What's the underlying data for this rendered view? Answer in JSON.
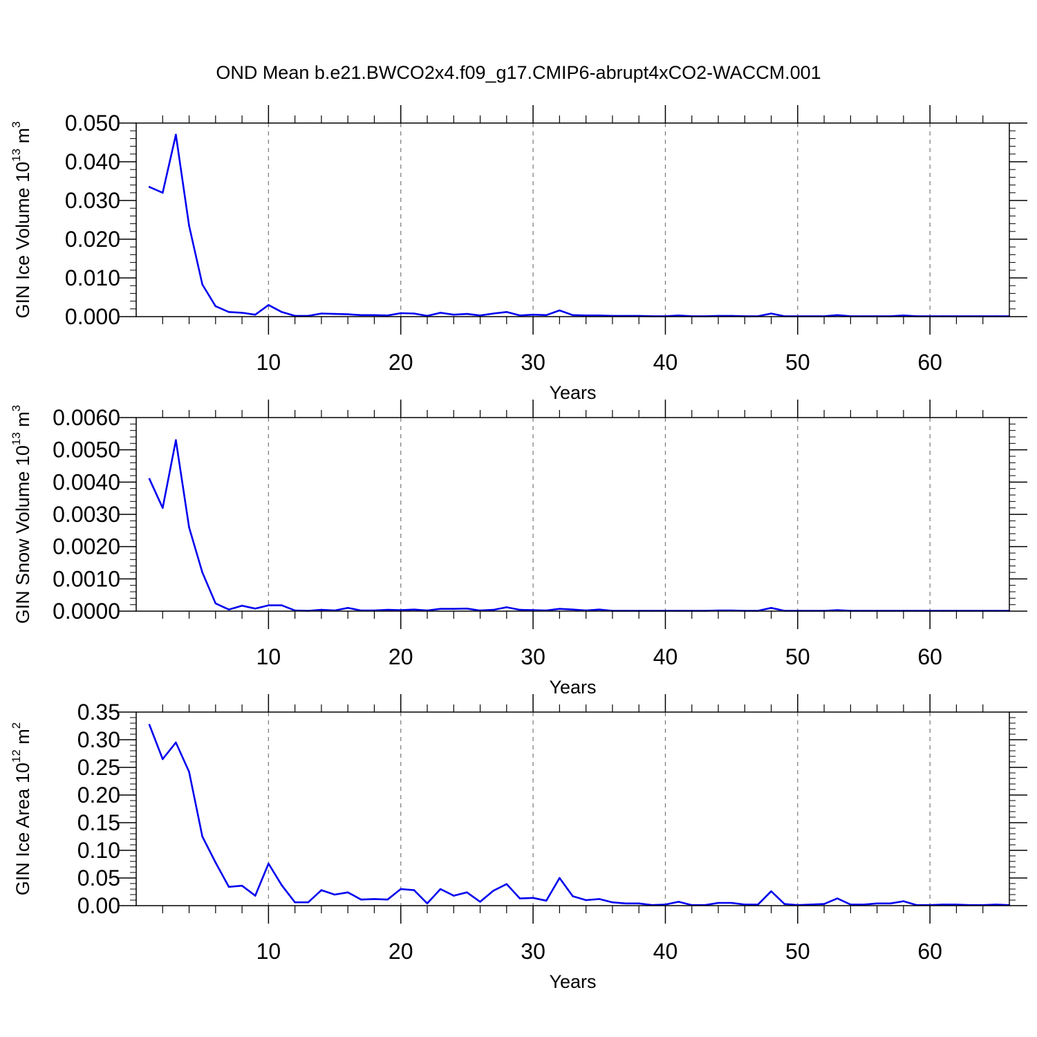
{
  "title": "OND Mean b.e21.BWCO2x4.f09_g17.CMIP6-abrupt4xCO2-WACCM.001",
  "chart_data": [
    {
      "type": "line",
      "ylabel": "GIN Ice Volume 10",
      "ylabel_exp": "13",
      "ylabel_unit": " m",
      "ylabel_unit_exp": "3",
      "xlabel": "Years",
      "xlim": [
        0,
        66
      ],
      "ylim": [
        0,
        0.05
      ],
      "x_ticks": [
        10,
        20,
        30,
        40,
        50,
        60
      ],
      "y_ticks": [
        0,
        0.01,
        0.02,
        0.03,
        0.04,
        0.05
      ],
      "y_tick_labels": [
        "0.000",
        "0.010",
        "0.020",
        "0.030",
        "0.040",
        "0.050"
      ],
      "y_minor_step": 0.002,
      "grid": "x-dashed",
      "line_color": "#0000ee",
      "x": [
        1,
        2,
        3,
        4,
        5,
        6,
        7,
        8,
        9,
        10,
        11,
        12,
        13,
        14,
        15,
        16,
        17,
        18,
        19,
        20,
        21,
        22,
        23,
        24,
        25,
        26,
        27,
        28,
        29,
        30,
        31,
        32,
        33,
        34,
        35,
        36,
        37,
        38,
        39,
        40,
        41,
        42,
        43,
        44,
        45,
        46,
        47,
        48,
        49,
        50,
        51,
        52,
        53,
        54,
        55,
        56,
        57,
        58,
        59,
        60,
        61,
        62,
        63,
        64,
        65,
        66
      ],
      "values": [
        0.0335,
        0.032,
        0.047,
        0.0235,
        0.0083,
        0.0027,
        0.0012,
        0.001,
        0.0005,
        0.003,
        0.0012,
        0.0002,
        0.0002,
        0.0008,
        0.0007,
        0.0006,
        0.0004,
        0.0004,
        0.0003,
        0.0009,
        0.0008,
        0.0002,
        0.001,
        0.0005,
        0.0007,
        0.0003,
        0.0008,
        0.0012,
        0.0003,
        0.0005,
        0.0004,
        0.0016,
        0.0004,
        0.0003,
        0.0003,
        0.0002,
        0.0002,
        0.0002,
        0.0001,
        0.0001,
        0.0003,
        0.0001,
        0.0001,
        0.0002,
        0.0002,
        0.0001,
        0.0001,
        0.0008,
        0.0001,
        0.0001,
        0.0001,
        0.0001,
        0.0004,
        0.0001,
        0.0001,
        0.0001,
        0.0001,
        0.0003,
        0.0001,
        0.0001,
        0.0001,
        0.0001,
        0.0001,
        0.0001,
        0.0001,
        0.0001
      ]
    },
    {
      "type": "line",
      "ylabel": "GIN Snow Volume 10",
      "ylabel_exp": "13",
      "ylabel_unit": " m",
      "ylabel_unit_exp": "3",
      "xlabel": "Years",
      "xlim": [
        0,
        66
      ],
      "ylim": [
        0,
        0.006
      ],
      "x_ticks": [
        10,
        20,
        30,
        40,
        50,
        60
      ],
      "y_ticks": [
        0,
        0.001,
        0.002,
        0.003,
        0.004,
        0.005,
        0.006
      ],
      "y_tick_labels": [
        "0.0000",
        "0.0010",
        "0.0020",
        "0.0030",
        "0.0040",
        "0.0050",
        "0.0060"
      ],
      "y_minor_step": 0.0002,
      "grid": "x-dashed",
      "line_color": "#0000ee",
      "x": [
        1,
        2,
        3,
        4,
        5,
        6,
        7,
        8,
        9,
        10,
        11,
        12,
        13,
        14,
        15,
        16,
        17,
        18,
        19,
        20,
        21,
        22,
        23,
        24,
        25,
        26,
        27,
        28,
        29,
        30,
        31,
        32,
        33,
        34,
        35,
        36,
        37,
        38,
        39,
        40,
        41,
        42,
        43,
        44,
        45,
        46,
        47,
        48,
        49,
        50,
        51,
        52,
        53,
        54,
        55,
        56,
        57,
        58,
        59,
        60,
        61,
        62,
        63,
        64,
        65,
        66
      ],
      "values": [
        0.0041,
        0.0032,
        0.0053,
        0.0026,
        0.0012,
        0.00024,
        5e-05,
        0.00017,
        8e-05,
        0.00018,
        0.00018,
        2e-05,
        1e-05,
        4e-05,
        2e-05,
        0.0001,
        2e-05,
        2e-05,
        4e-05,
        3e-05,
        5e-05,
        2e-05,
        7e-05,
        7e-05,
        8e-05,
        2e-05,
        4e-05,
        0.00012,
        4e-05,
        3e-05,
        2e-05,
        7e-05,
        5e-05,
        2e-05,
        5e-05,
        1e-05,
        1e-05,
        1e-05,
        1e-05,
        1e-05,
        1e-05,
        1e-05,
        1e-05,
        2e-05,
        2e-05,
        1e-05,
        1e-05,
        0.0001,
        1e-05,
        1e-05,
        1e-05,
        1e-05,
        3e-05,
        1e-05,
        1e-05,
        1e-05,
        1e-05,
        1e-05,
        1e-05,
        1e-05,
        1e-05,
        1e-05,
        1e-05,
        1e-05,
        1e-05,
        1e-05
      ]
    },
    {
      "type": "line",
      "ylabel": "GIN Ice Area 10",
      "ylabel_exp": "12",
      "ylabel_unit": " m",
      "ylabel_unit_exp": "2",
      "xlabel": "Years",
      "xlim": [
        0,
        66
      ],
      "ylim": [
        0,
        0.35
      ],
      "x_ticks": [
        10,
        20,
        30,
        40,
        50,
        60
      ],
      "y_ticks": [
        0,
        0.05,
        0.1,
        0.15,
        0.2,
        0.25,
        0.3,
        0.35
      ],
      "y_tick_labels": [
        "0.00",
        "0.05",
        "0.10",
        "0.15",
        "0.20",
        "0.25",
        "0.30",
        "0.35"
      ],
      "y_minor_step": 0.01,
      "grid": "x-dashed",
      "line_color": "#0000ee",
      "x": [
        1,
        2,
        3,
        4,
        5,
        6,
        7,
        8,
        9,
        10,
        11,
        12,
        13,
        14,
        15,
        16,
        17,
        18,
        19,
        20,
        21,
        22,
        23,
        24,
        25,
        26,
        27,
        28,
        29,
        30,
        31,
        32,
        33,
        34,
        35,
        36,
        37,
        38,
        39,
        40,
        41,
        42,
        43,
        44,
        45,
        46,
        47,
        48,
        49,
        50,
        51,
        52,
        53,
        54,
        55,
        56,
        57,
        58,
        59,
        60,
        61,
        62,
        63,
        64,
        65,
        66
      ],
      "values": [
        0.327,
        0.265,
        0.295,
        0.242,
        0.125,
        0.078,
        0.034,
        0.036,
        0.018,
        0.076,
        0.037,
        0.006,
        0.006,
        0.028,
        0.02,
        0.024,
        0.011,
        0.012,
        0.011,
        0.03,
        0.028,
        0.004,
        0.03,
        0.018,
        0.024,
        0.007,
        0.027,
        0.039,
        0.013,
        0.014,
        0.009,
        0.05,
        0.017,
        0.01,
        0.012,
        0.006,
        0.004,
        0.004,
        0.001,
        0.002,
        0.007,
        0.001,
        0.001,
        0.005,
        0.005,
        0.002,
        0.002,
        0.026,
        0.003,
        0.001,
        0.002,
        0.003,
        0.013,
        0.002,
        0.002,
        0.004,
        0.004,
        0.008,
        0.001,
        0.001,
        0.002,
        0.002,
        0.001,
        0.001,
        0.002,
        0.001
      ]
    }
  ]
}
